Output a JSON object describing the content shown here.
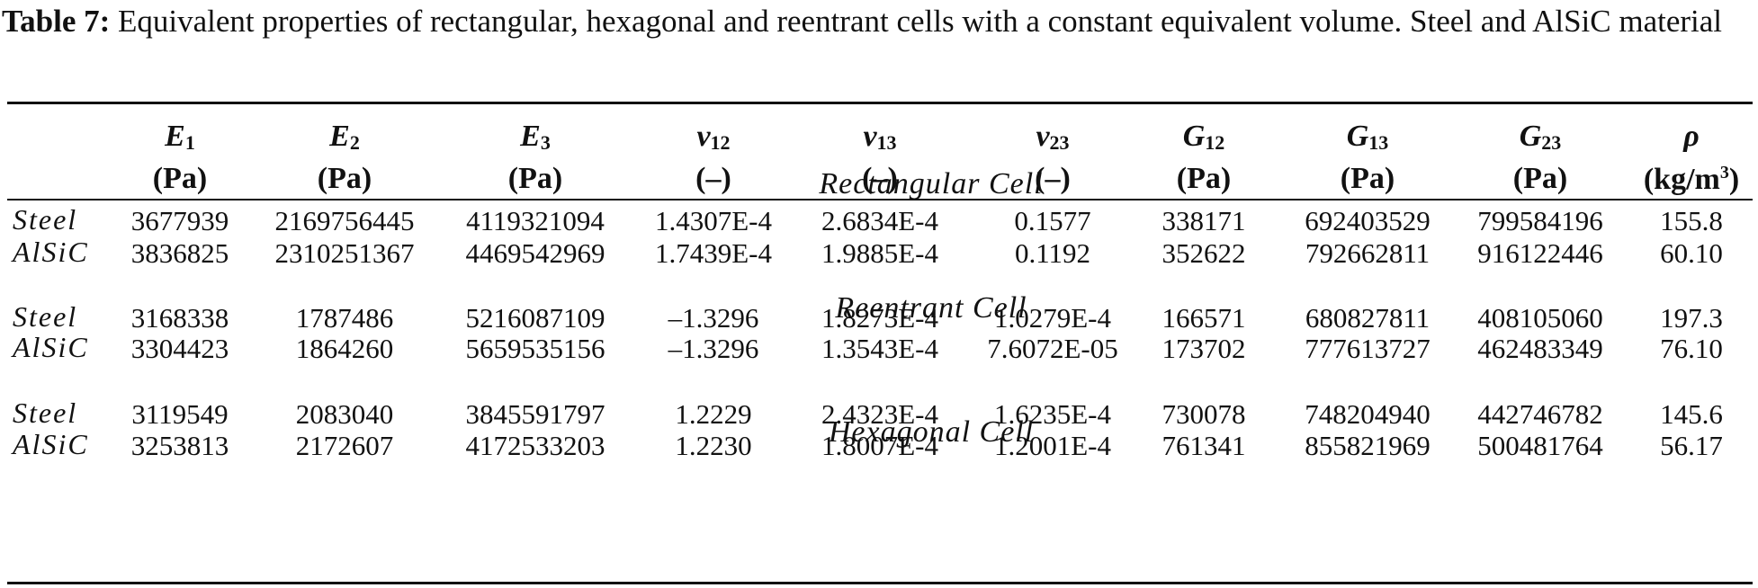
{
  "caption": {
    "label": "Table 7:",
    "text": " Equivalent properties of rectangular, hexagonal and reentrant cells with a constant equivalent volume. Steel and AlSiC material"
  },
  "columns": [
    {
      "sym": "E",
      "sub": "1",
      "unit": "(Pa)",
      "sup": ""
    },
    {
      "sym": "E",
      "sub": "2",
      "unit": "(Pa)",
      "sup": ""
    },
    {
      "sym": "E",
      "sub": "3",
      "unit": "(Pa)",
      "sup": ""
    },
    {
      "sym": "ν",
      "sub": "12",
      "unit": "(–)",
      "sup": ""
    },
    {
      "sym": "ν",
      "sub": "13",
      "unit": "(–)",
      "sup": ""
    },
    {
      "sym": "ν",
      "sub": "23",
      "unit": "(–)",
      "sup": ""
    },
    {
      "sym": "G",
      "sub": "12",
      "unit": "(Pa)",
      "sup": ""
    },
    {
      "sym": "G",
      "sub": "13",
      "unit": "(Pa)",
      "sup": ""
    },
    {
      "sym": "G",
      "sub": "23",
      "unit": "(Pa)",
      "sup": ""
    },
    {
      "sym": "ρ",
      "sub": "",
      "unit": "(kg/m",
      "sup": "3",
      "unit_close": ")"
    }
  ],
  "sections": [
    {
      "title": "Rectangular Cell",
      "rows": [
        {
          "material": "Steel",
          "values": [
            "3677939",
            "2169756445",
            "4119321094",
            "1.4307E-4",
            "2.6834E-4",
            "0.1577",
            "338171",
            "692403529",
            "799584196",
            "155.8"
          ]
        },
        {
          "material": "AlSiC",
          "values": [
            "3836825",
            "2310251367",
            "4469542969",
            "1.7439E-4",
            "1.9885E-4",
            "0.1192",
            "352622",
            "792662811",
            "916122446",
            "60.10"
          ]
        }
      ]
    },
    {
      "title": "Reentrant Cell",
      "rows": [
        {
          "material": "Steel",
          "values": [
            "3168338",
            "1787486",
            "5216087109",
            "–1.3296",
            "1.8273E-4",
            "1.0279E-4",
            "166571",
            "680827811",
            "408105060",
            "197.3"
          ]
        },
        {
          "material": "AlSiC",
          "values": [
            "3304423",
            "1864260",
            "5659535156",
            "–1.3296",
            "1.3543E-4",
            "7.6072E-05",
            "173702",
            "777613727",
            "462483349",
            "76.10"
          ]
        }
      ]
    },
    {
      "title": "Hexagonal Cell",
      "rows": [
        {
          "material": "Steel",
          "values": [
            "3119549",
            "2083040",
            "3845591797",
            "1.2229",
            "2.4323E-4",
            "1.6235E-4",
            "730078",
            "748204940",
            "442746782",
            "145.6"
          ]
        },
        {
          "material": "AlSiC",
          "values": [
            "3253813",
            "2172607",
            "4172533203",
            "1.2230",
            "1.8007E-4",
            "1.2001E-4",
            "761341",
            "855821969",
            "500481764",
            "56.17"
          ]
        }
      ]
    }
  ]
}
